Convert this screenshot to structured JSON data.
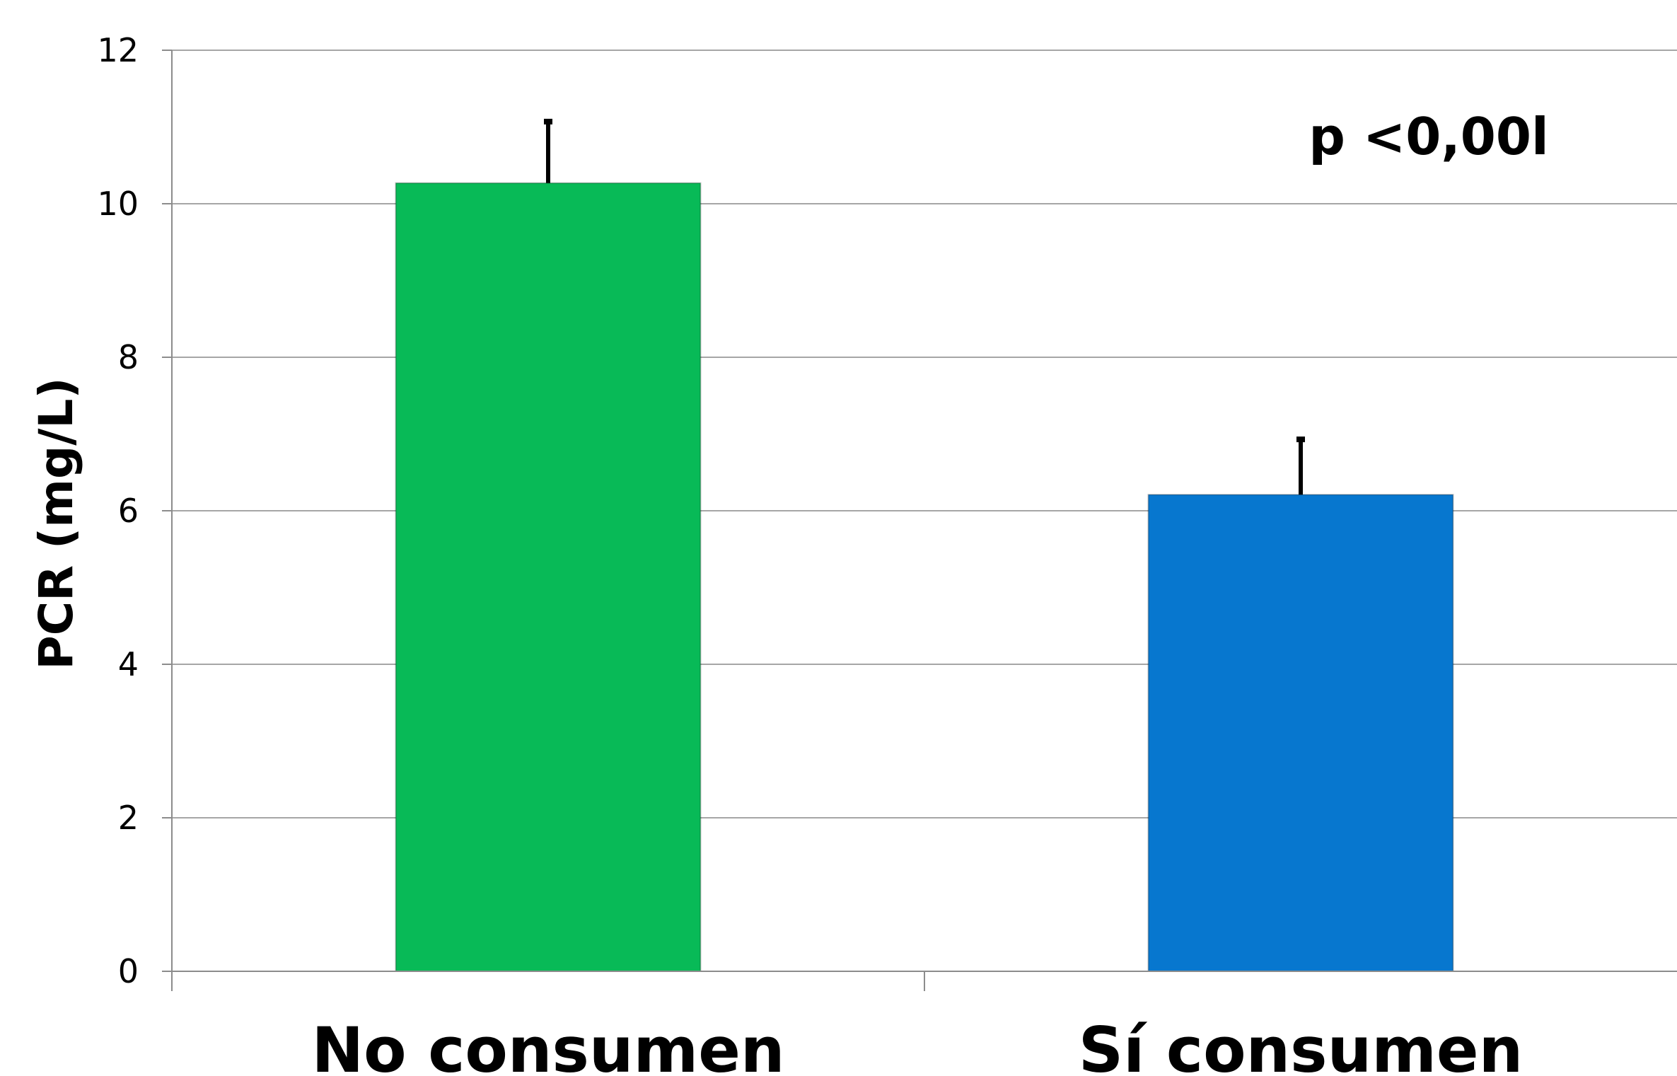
{
  "chart_data": {
    "type": "bar",
    "title": "",
    "xlabel": "",
    "ylabel": "PCR (mg/L)",
    "categories": [
      "No consumen",
      "Sí consumen"
    ],
    "values": [
      10.27,
      6.21
    ],
    "error_bars": [
      0.8,
      0.72
    ],
    "colors": [
      "#08BA57",
      "#0777CF"
    ],
    "ylim": [
      0,
      12
    ],
    "yticks": [
      "0",
      "2",
      "4",
      "6",
      "8",
      "10",
      "12"
    ],
    "grid": true,
    "legend": "none",
    "annotation": "p <0,00l"
  }
}
